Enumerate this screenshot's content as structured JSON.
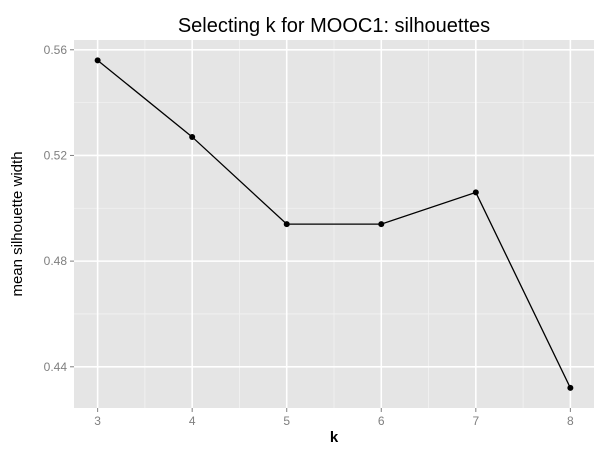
{
  "chart_data": {
    "type": "line",
    "title": "Selecting k for MOOC1: silhouettes",
    "xlabel": "k",
    "ylabel": "mean silhouette width",
    "x": [
      3,
      4,
      5,
      6,
      7,
      8
    ],
    "xticks": [
      "3",
      "4",
      "5",
      "6",
      "7",
      "8"
    ],
    "yticks": [
      "0.44",
      "0.48",
      "0.52",
      "0.56"
    ],
    "xlim": [
      2.75,
      8.25
    ],
    "ylim": [
      0.4244,
      0.5637
    ],
    "series": [
      {
        "values": [
          0.556,
          0.527,
          0.494,
          0.494,
          0.506,
          0.432
        ]
      }
    ],
    "grid": true,
    "style": {
      "panel_bg": "#e5e5e5",
      "grid_major": "#ffffff",
      "grid_minor": "#f2f2f2",
      "line": "#000000",
      "tick_text": "#7f7f7f"
    }
  }
}
